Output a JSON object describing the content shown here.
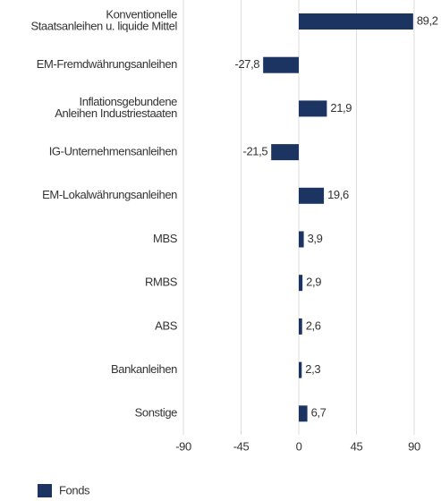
{
  "chart_data": {
    "type": "bar",
    "orientation": "horizontal",
    "categories": [
      "Konventionelle\nStaatsanleihen u. liquide Mittel",
      "EM-Fremdwährungsanleihen",
      "Inflationsgebundene\nAnleihen Industriestaaten",
      "IG-Unternehmensanleihen",
      "EM-Lokalwährungsanleihen",
      "MBS",
      "RMBS",
      "ABS",
      "Bankanleihen",
      "Sonstige"
    ],
    "series": [
      {
        "name": "Fonds",
        "color": "#1c3461",
        "values": [
          89.2,
          -27.8,
          21.9,
          -21.5,
          19.6,
          3.9,
          2.9,
          2.6,
          2.3,
          6.7
        ],
        "value_labels": [
          "89,2",
          "-27,8",
          "21,9",
          "-21,5",
          "19,6",
          "3,9",
          "2,9",
          "2,6",
          "2,3",
          "6,7"
        ]
      }
    ],
    "xlim": [
      -90,
      90
    ],
    "xticks": [
      -90,
      -45,
      0,
      45,
      90
    ],
    "grid": true,
    "legend": "bottom-left"
  }
}
